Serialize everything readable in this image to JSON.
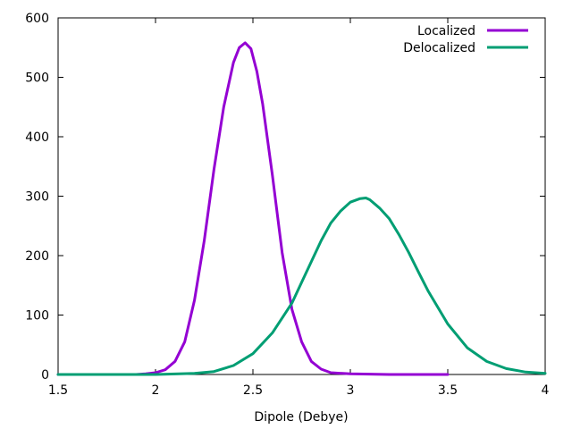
{
  "chart_data": {
    "type": "line",
    "title": "",
    "xlabel": "Dipole (Debye)",
    "ylabel": "",
    "xlim": [
      1.5,
      4
    ],
    "ylim": [
      0,
      600
    ],
    "x_ticks": [
      1.5,
      2,
      2.5,
      3,
      3.5,
      4
    ],
    "x_tick_labels": [
      "1.5",
      "2",
      "2.5",
      "3",
      "3.5",
      "4"
    ],
    "y_ticks": [
      0,
      100,
      200,
      300,
      400,
      500,
      600
    ],
    "y_tick_labels": [
      "0",
      "100",
      "200",
      "300",
      "400",
      "500",
      "600"
    ],
    "grid": false,
    "legend_position": "top-right",
    "series": [
      {
        "name": "Localized",
        "color": "#9400d3",
        "x": [
          1.5,
          1.9,
          1.95,
          2.0,
          2.05,
          2.1,
          2.15,
          2.2,
          2.25,
          2.3,
          2.35,
          2.4,
          2.43,
          2.46,
          2.49,
          2.52,
          2.55,
          2.6,
          2.65,
          2.7,
          2.75,
          2.8,
          2.85,
          2.9,
          3.0,
          3.2,
          3.5
        ],
        "y": [
          0,
          0,
          1,
          3,
          8,
          22,
          55,
          125,
          225,
          345,
          450,
          525,
          550,
          558,
          548,
          510,
          455,
          335,
          205,
          110,
          55,
          22,
          9,
          3,
          1,
          0,
          0
        ]
      },
      {
        "name": "Delocalized",
        "color": "#009e73",
        "x": [
          1.5,
          2.0,
          2.2,
          2.3,
          2.4,
          2.5,
          2.6,
          2.7,
          2.75,
          2.8,
          2.85,
          2.9,
          2.95,
          3.0,
          3.05,
          3.08,
          3.1,
          3.15,
          3.2,
          3.25,
          3.3,
          3.35,
          3.4,
          3.5,
          3.6,
          3.7,
          3.8,
          3.9,
          4.0
        ],
        "y": [
          0,
          0,
          2,
          5,
          15,
          35,
          70,
          120,
          155,
          190,
          225,
          255,
          275,
          290,
          296,
          297,
          294,
          280,
          262,
          235,
          205,
          172,
          140,
          85,
          45,
          22,
          10,
          4,
          2
        ]
      }
    ]
  }
}
